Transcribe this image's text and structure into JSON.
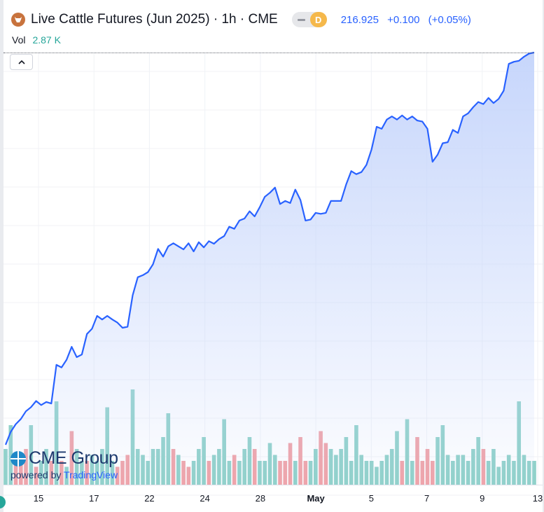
{
  "header": {
    "title": "Live Cattle Futures (Jun 2025) · 1h · CME",
    "toggle_badge": "D",
    "last_price": "216.925",
    "change": "+0.100",
    "change_pct": "(+0.05%)"
  },
  "volume": {
    "label": "Vol",
    "value": "2.87 K"
  },
  "watermark": {
    "brand": "CME Group",
    "powered_by": "powered by",
    "provider": "TradingView"
  },
  "colors": {
    "line": "#2962ff",
    "area_top": "#c4d4fb",
    "vol_up": "#8fd1c9",
    "vol_down": "#f0a2a7",
    "grid": "#f0f2f6"
  },
  "icons": {
    "collapse": "chevron-up-icon",
    "symbol": "cattle-logo-icon"
  },
  "chart_data": {
    "type": "area",
    "x_tick_labels": [
      "15",
      "17",
      "22",
      "24",
      "28",
      "May",
      "5",
      "7",
      "9",
      "13"
    ],
    "price": [
      206.55,
      206.8,
      206.95,
      207.05,
      207.2,
      207.28,
      207.4,
      207.32,
      207.38,
      207.35,
      208.1,
      208.05,
      208.2,
      208.45,
      208.25,
      208.3,
      208.7,
      208.8,
      209.05,
      208.98,
      209.05,
      208.98,
      208.92,
      208.82,
      208.84,
      209.45,
      209.8,
      209.84,
      209.9,
      210.05,
      210.35,
      210.2,
      210.4,
      210.46,
      210.4,
      210.34,
      210.46,
      210.3,
      210.48,
      210.38,
      210.5,
      210.45,
      210.54,
      210.6,
      210.78,
      210.74,
      210.9,
      210.94,
      211.08,
      210.98,
      211.16,
      211.36,
      211.44,
      211.54,
      211.22,
      211.28,
      211.24,
      211.5,
      211.3,
      210.9,
      210.92,
      211.05,
      211.03,
      211.05,
      211.28,
      211.28,
      211.28,
      211.6,
      211.86,
      211.8,
      211.84,
      211.98,
      212.28,
      212.72,
      212.68,
      212.86,
      212.92,
      212.86,
      212.94,
      212.86,
      212.92,
      212.84,
      212.82,
      212.68,
      212.04,
      212.18,
      212.4,
      212.42,
      212.66,
      212.6,
      212.92,
      212.98,
      213.1,
      213.2,
      213.16,
      213.28,
      213.18,
      213.26,
      213.42,
      213.94,
      213.98,
      214.0,
      214.08,
      214.14,
      214.16
    ],
    "volume_relative": [
      0.3,
      0.5,
      0.2,
      0.2,
      0.3,
      0.5,
      0.15,
      0.2,
      0.3,
      0.2,
      0.7,
      0.2,
      0.15,
      0.45,
      0.3,
      0.2,
      0.2,
      0.25,
      0.2,
      0.3,
      0.65,
      0.2,
      0.15,
      0.2,
      0.25,
      0.8,
      0.3,
      0.25,
      0.2,
      0.3,
      0.3,
      0.4,
      0.6,
      0.3,
      0.25,
      0.2,
      0.15,
      0.2,
      0.3,
      0.4,
      0.2,
      0.25,
      0.3,
      0.55,
      0.2,
      0.25,
      0.2,
      0.3,
      0.4,
      0.3,
      0.2,
      0.2,
      0.35,
      0.25,
      0.2,
      0.2,
      0.35,
      0.2,
      0.4,
      0.2,
      0.2,
      0.3,
      0.45,
      0.35,
      0.3,
      0.25,
      0.3,
      0.4,
      0.2,
      0.5,
      0.25,
      0.2,
      0.2,
      0.15,
      0.2,
      0.25,
      0.3,
      0.45,
      0.2,
      0.55,
      0.2,
      0.4,
      0.2,
      0.3,
      0.2,
      0.4,
      0.5,
      0.25,
      0.2,
      0.25,
      0.25,
      0.2,
      0.3,
      0.4,
      0.3,
      0.2,
      0.3,
      0.15,
      0.2,
      0.25,
      0.2,
      0.7,
      0.25,
      0.2,
      0.2
    ],
    "volume_up": [
      true,
      true,
      false,
      false,
      false,
      true,
      false,
      true,
      true,
      false,
      true,
      false,
      true,
      false,
      true,
      true,
      false,
      true,
      true,
      true,
      true,
      true,
      false,
      false,
      false,
      true,
      true,
      true,
      true,
      true,
      true,
      true,
      true,
      false,
      true,
      false,
      false,
      true,
      true,
      true,
      false,
      true,
      true,
      true,
      true,
      false,
      true,
      true,
      true,
      false,
      true,
      true,
      true,
      true,
      false,
      false,
      false,
      true,
      false,
      false,
      true,
      true,
      false,
      false,
      true,
      true,
      true,
      true,
      true,
      true,
      true,
      true,
      true,
      true,
      true,
      true,
      true,
      true,
      false,
      true,
      true,
      false,
      false,
      false,
      false,
      true,
      true,
      true,
      true,
      true,
      true,
      true,
      true,
      true,
      false,
      true,
      true,
      true,
      true,
      true,
      true,
      true,
      true,
      true,
      true
    ],
    "volume_up_flags_from_bars": true,
    "grid": true
  }
}
